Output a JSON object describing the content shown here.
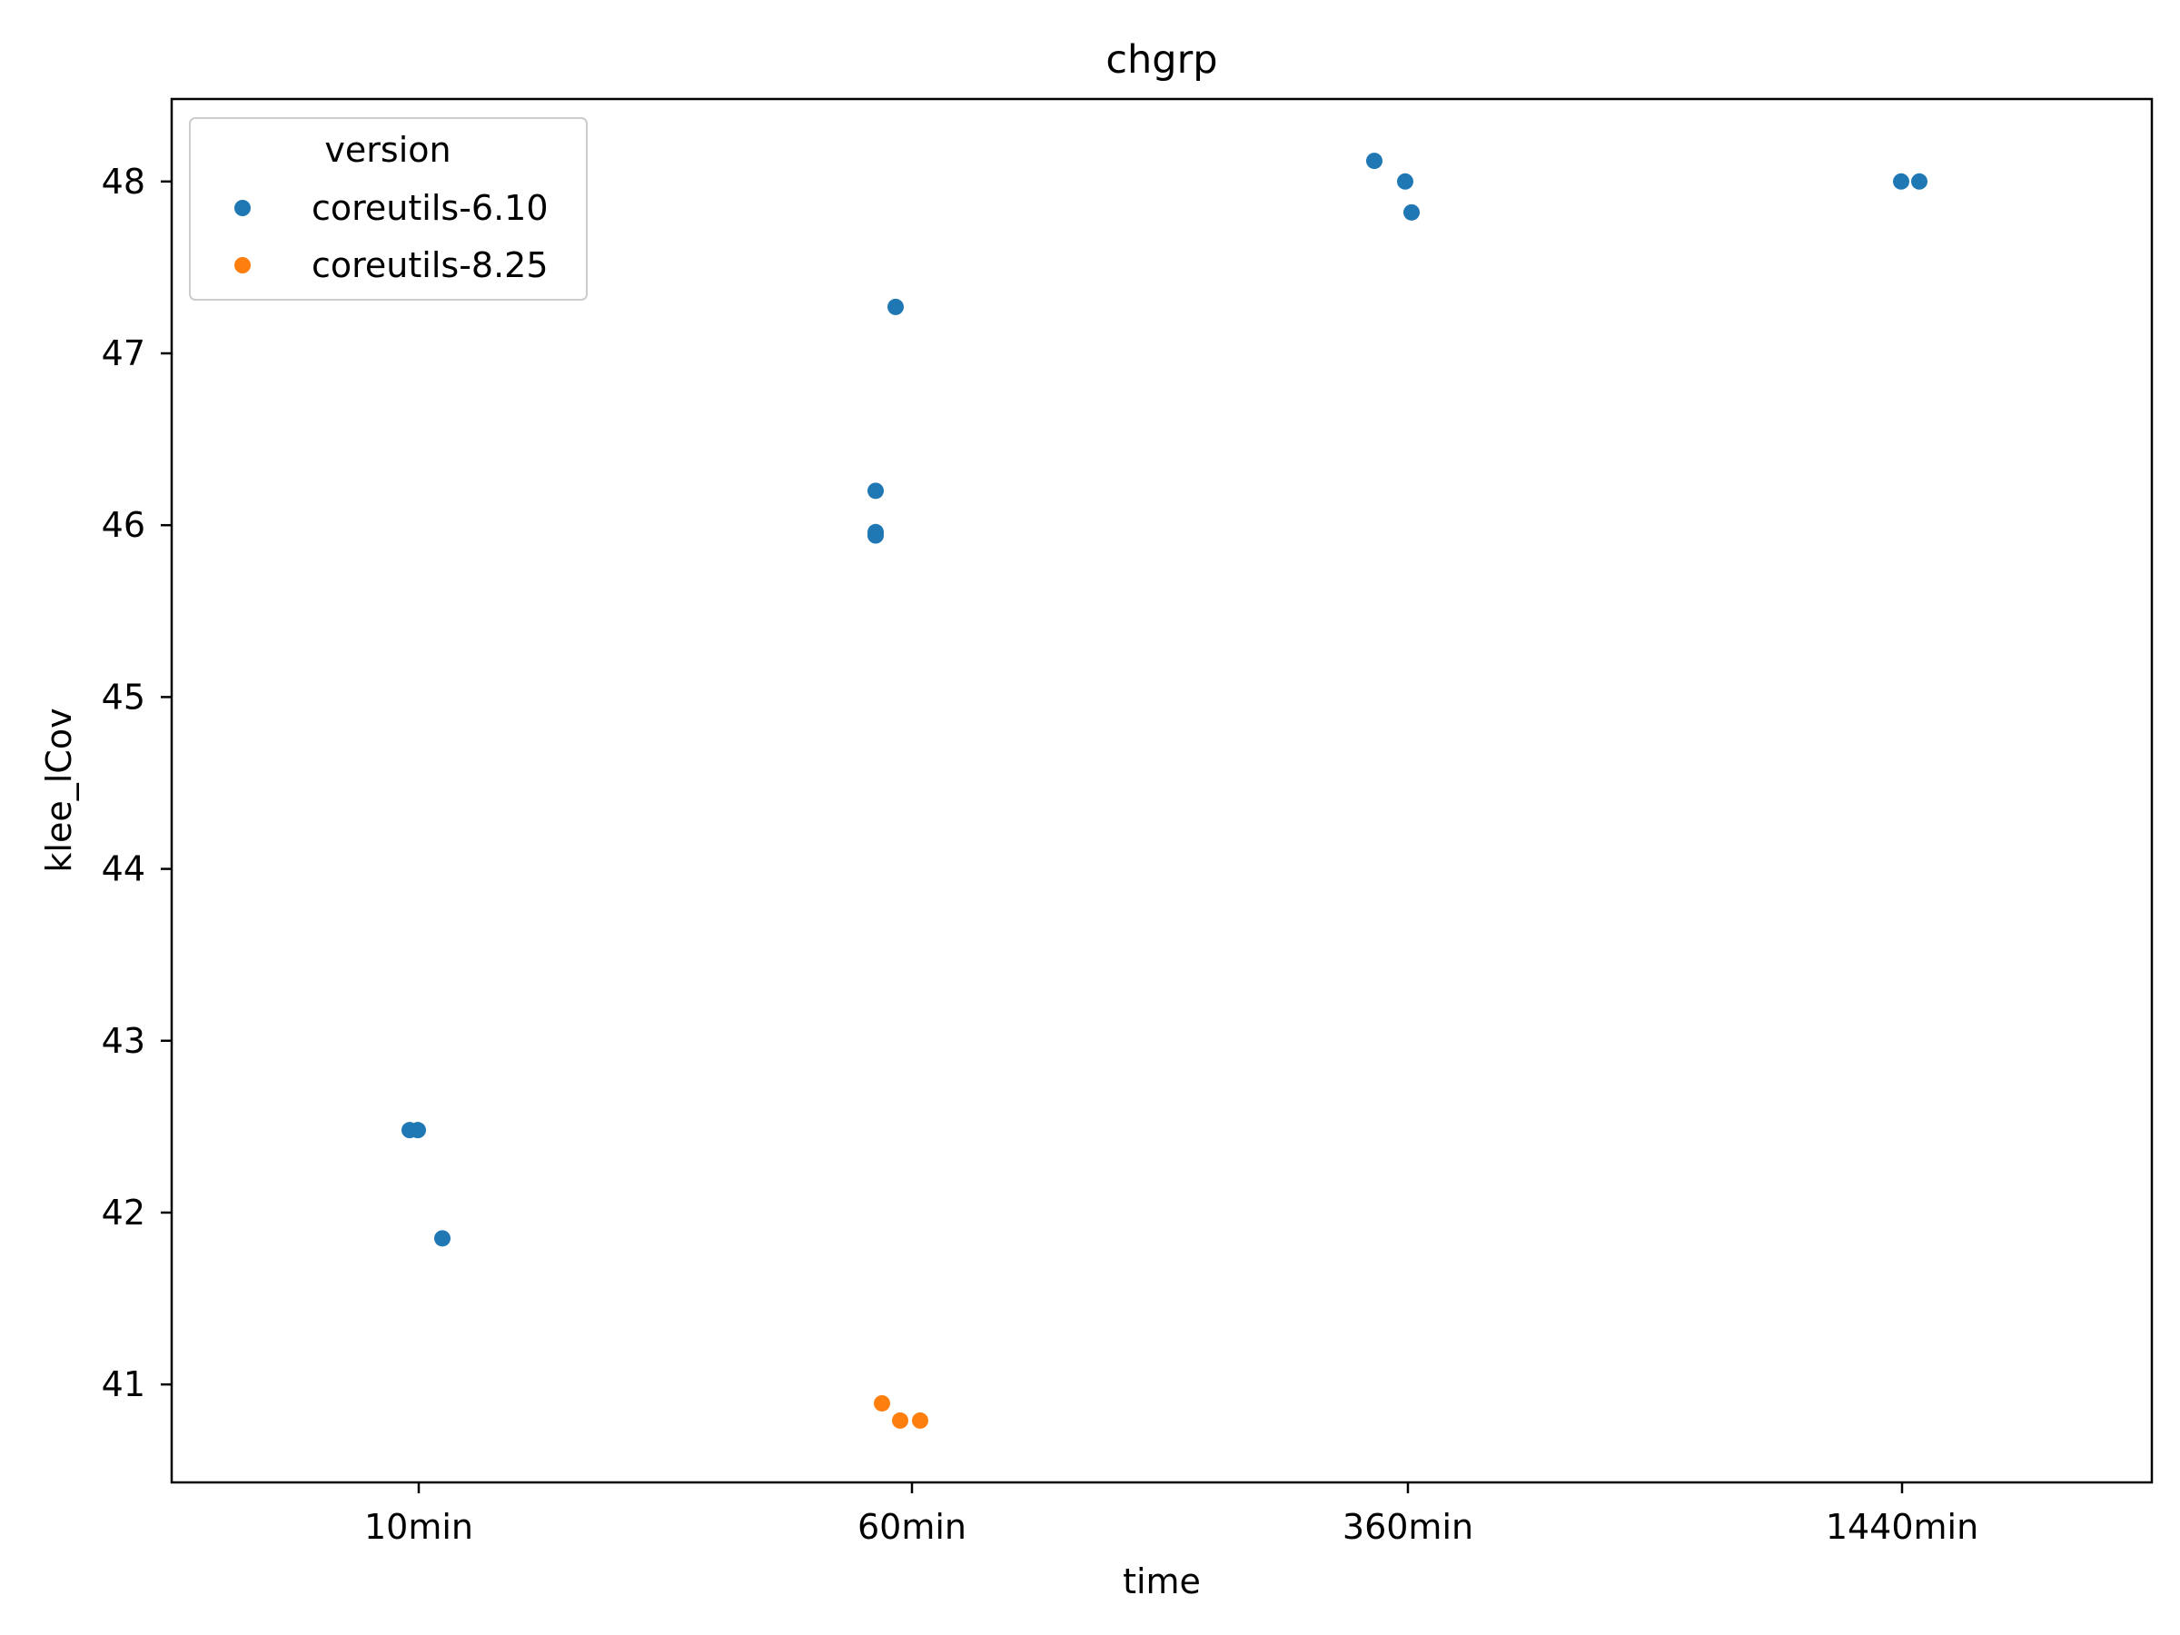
{
  "chart_data": {
    "type": "scatter",
    "title": "chgrp",
    "xlabel": "time",
    "ylabel": "klee_lCov",
    "categories": [
      "10min",
      "60min",
      "360min",
      "1440min"
    ],
    "ylim": [
      40.43,
      48.48
    ],
    "yticks": [
      41,
      42,
      43,
      44,
      45,
      46,
      47,
      48
    ],
    "grid": false,
    "legend": {
      "title": "version",
      "placement": "top-left"
    },
    "series": [
      {
        "name": "coreutils-6.10",
        "color": "#1f77b4",
        "points": [
          {
            "x": "10min",
            "y": 42.48
          },
          {
            "x": "10min",
            "y": 42.48
          },
          {
            "x": "10min",
            "y": 41.85
          },
          {
            "x": "60min",
            "y": 47.27
          },
          {
            "x": "60min",
            "y": 46.2
          },
          {
            "x": "60min",
            "y": 45.96
          },
          {
            "x": "60min",
            "y": 45.94
          },
          {
            "x": "360min",
            "y": 48.12
          },
          {
            "x": "360min",
            "y": 48.0
          },
          {
            "x": "360min",
            "y": 47.82
          },
          {
            "x": "1440min",
            "y": 48.0
          },
          {
            "x": "1440min",
            "y": 48.0
          }
        ]
      },
      {
        "name": "coreutils-8.25",
        "color": "#ff7f0e",
        "points": [
          {
            "x": "60min",
            "y": 40.89
          },
          {
            "x": "60min",
            "y": 40.79
          },
          {
            "x": "60min",
            "y": 40.79
          }
        ]
      }
    ]
  }
}
